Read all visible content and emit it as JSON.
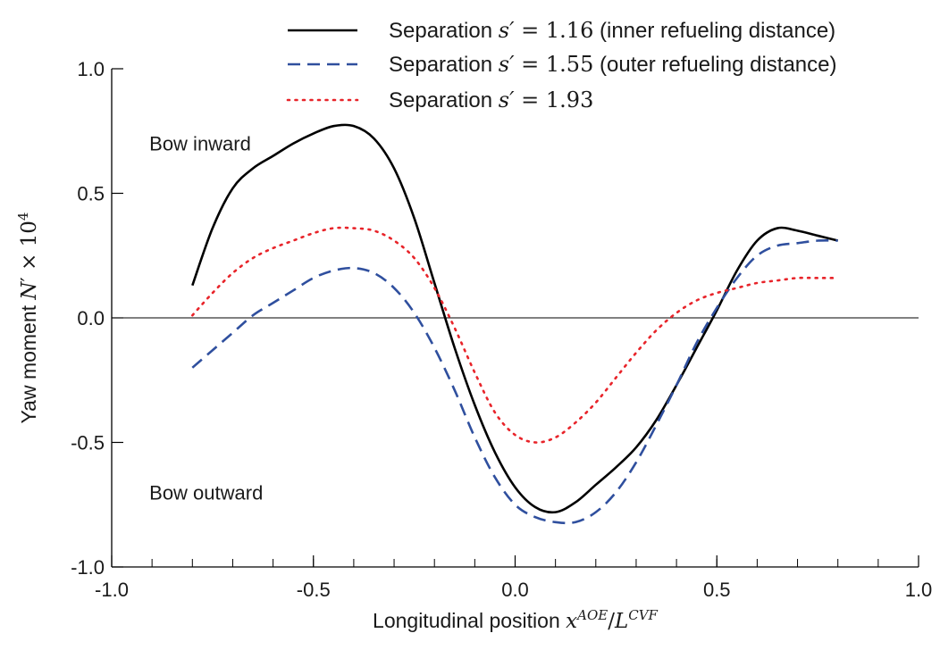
{
  "chart_data": {
    "type": "line",
    "xlim": [
      -1.0,
      1.0
    ],
    "ylim": [
      -1.0,
      1.0
    ],
    "x_ticks": [
      "-1.0",
      "-0.5",
      "0.0",
      "0.5",
      "1.0"
    ],
    "y_ticks": [
      "-1.0",
      "-0.5",
      "0.0",
      "0.5",
      "1.0"
    ],
    "x_tick_values": [
      -1.0,
      -0.5,
      0.0,
      0.5,
      1.0
    ],
    "y_tick_values": [
      -1.0,
      -0.5,
      0.0,
      0.5,
      1.0
    ],
    "x_minor_step": 0.1,
    "zero_line": true,
    "grid": false,
    "legend_position": "top",
    "xlabel": {
      "prefix": "Longitudinal position ",
      "sym": "x",
      "sup": "AOE",
      "mid": "/",
      "sym2": "L",
      "sup2": "CVF"
    },
    "ylabel": {
      "prefix": "Yaw moment ",
      "sym": "N",
      "prime": "′",
      "times": " × 10",
      "exp": "4"
    },
    "annotations": [
      {
        "text": "Bow inward",
        "x": -0.9,
        "y": 0.7
      },
      {
        "text": "Bow outward",
        "x": -0.9,
        "y": -0.7
      }
    ],
    "series": [
      {
        "name": "Separation s′ = 1.16 (inner refueling distance)",
        "legend": {
          "prefix": "Separation ",
          "sym": "s′",
          "eq": " = 1.16",
          "suffix": " (inner refueling distance)"
        },
        "color": "#000000",
        "style": "solid",
        "x": [
          -0.8,
          -0.75,
          -0.7,
          -0.65,
          -0.6,
          -0.55,
          -0.5,
          -0.45,
          -0.4,
          -0.35,
          -0.3,
          -0.25,
          -0.2,
          -0.15,
          -0.1,
          -0.05,
          0.0,
          0.05,
          0.1,
          0.15,
          0.2,
          0.25,
          0.3,
          0.35,
          0.4,
          0.45,
          0.5,
          0.55,
          0.6,
          0.65,
          0.7,
          0.75,
          0.8
        ],
        "y": [
          0.13,
          0.36,
          0.52,
          0.6,
          0.65,
          0.7,
          0.74,
          0.77,
          0.77,
          0.72,
          0.6,
          0.4,
          0.14,
          -0.12,
          -0.35,
          -0.54,
          -0.68,
          -0.76,
          -0.78,
          -0.74,
          -0.67,
          -0.6,
          -0.52,
          -0.41,
          -0.27,
          -0.12,
          0.03,
          0.19,
          0.31,
          0.36,
          0.35,
          0.33,
          0.31
        ]
      },
      {
        "name": "Separation s′ = 1.55 (outer refueling distance)",
        "legend": {
          "prefix": "Separation ",
          "sym": "s′",
          "eq": " = 1.55",
          "suffix": " (outer refueling distance)"
        },
        "color": "#2f4f9e",
        "style": "dashed",
        "x": [
          -0.8,
          -0.75,
          -0.7,
          -0.65,
          -0.6,
          -0.55,
          -0.5,
          -0.45,
          -0.4,
          -0.35,
          -0.3,
          -0.25,
          -0.2,
          -0.15,
          -0.1,
          -0.05,
          0.0,
          0.05,
          0.1,
          0.15,
          0.2,
          0.25,
          0.3,
          0.35,
          0.4,
          0.45,
          0.5,
          0.55,
          0.6,
          0.65,
          0.7,
          0.75,
          0.8
        ],
        "y": [
          -0.2,
          -0.13,
          -0.06,
          0.01,
          0.06,
          0.11,
          0.16,
          0.19,
          0.2,
          0.18,
          0.12,
          0.02,
          -0.12,
          -0.29,
          -0.48,
          -0.64,
          -0.75,
          -0.8,
          -0.82,
          -0.82,
          -0.78,
          -0.7,
          -0.58,
          -0.43,
          -0.27,
          -0.1,
          0.04,
          0.16,
          0.25,
          0.29,
          0.3,
          0.31,
          0.31
        ]
      },
      {
        "name": "Separation s′ = 1.93",
        "legend": {
          "prefix": "Separation ",
          "sym": "s′",
          "eq": " = 1.93",
          "suffix": ""
        },
        "color": "#e8242a",
        "style": "dotted",
        "x": [
          -0.8,
          -0.75,
          -0.7,
          -0.65,
          -0.6,
          -0.55,
          -0.5,
          -0.45,
          -0.4,
          -0.35,
          -0.3,
          -0.25,
          -0.2,
          -0.15,
          -0.1,
          -0.05,
          0.0,
          0.05,
          0.1,
          0.15,
          0.2,
          0.25,
          0.3,
          0.35,
          0.4,
          0.45,
          0.5,
          0.55,
          0.6,
          0.65,
          0.7,
          0.75,
          0.8
        ],
        "y": [
          0.01,
          0.1,
          0.18,
          0.24,
          0.28,
          0.31,
          0.34,
          0.36,
          0.36,
          0.35,
          0.31,
          0.24,
          0.12,
          -0.04,
          -0.22,
          -0.38,
          -0.47,
          -0.5,
          -0.48,
          -0.42,
          -0.34,
          -0.24,
          -0.14,
          -0.05,
          0.02,
          0.07,
          0.1,
          0.12,
          0.14,
          0.15,
          0.16,
          0.16,
          0.16
        ]
      }
    ]
  }
}
